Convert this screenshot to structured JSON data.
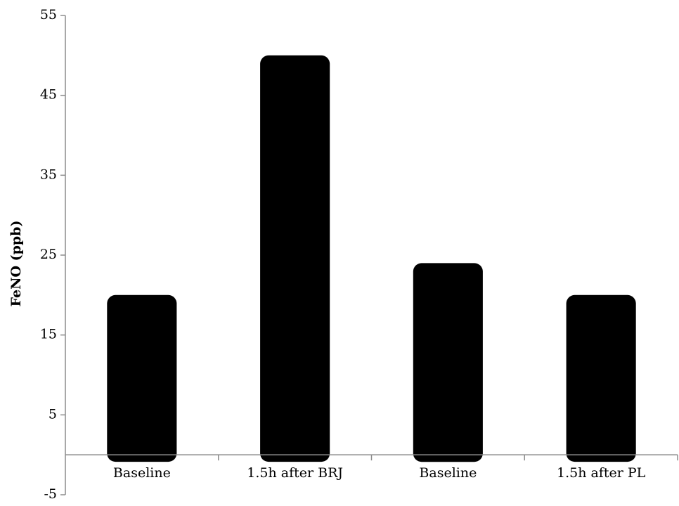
{
  "chart_data": {
    "type": "bar",
    "categories": [
      "Baseline",
      "1.5h after BRJ",
      "Baseline",
      "1.5h after PL"
    ],
    "values": [
      20,
      50,
      24,
      20
    ],
    "ylabel": "FeNO (ppb)",
    "xlabel": "",
    "ylim": [
      -5,
      55
    ],
    "yticks": [
      -5,
      5,
      15,
      25,
      35,
      45,
      55
    ],
    "grid": false,
    "legend": "none",
    "bar_color": "#000000"
  }
}
